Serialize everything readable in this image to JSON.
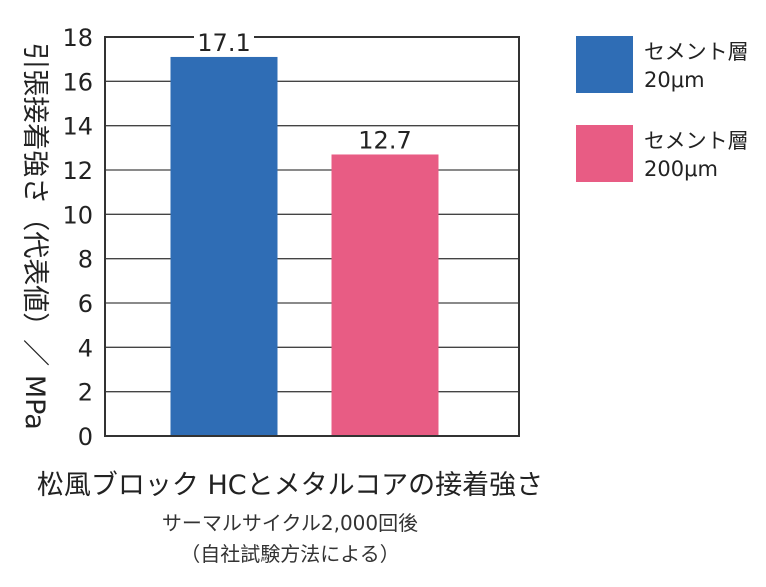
{
  "chart_data": {
    "type": "bar",
    "ylabel": "引張接着強さ（代表値）／ MPa",
    "ylim": [
      0,
      18
    ],
    "yticks": [
      "0",
      "2",
      "4",
      "6",
      "8",
      "10",
      "12",
      "14",
      "16",
      "18"
    ],
    "grid": true,
    "legend_position": "right",
    "series": [
      {
        "name": "セメント層 20μm",
        "values": [
          17.1
        ],
        "label": "17.1",
        "color": "#2f6db5"
      },
      {
        "name": "セメント層 200μm",
        "values": [
          12.7
        ],
        "label": "12.7",
        "color": "#e85c84"
      }
    ]
  },
  "legend": [
    {
      "line1": "セメント層",
      "line2": "20μm",
      "color": "#2f6db5"
    },
    {
      "line1": "セメント層",
      "line2": "200μm",
      "color": "#e85c84"
    }
  ],
  "caption": {
    "title": "松風ブロック HCとメタルコアの接着強さ",
    "sub1": "サーマルサイクル2,000回後",
    "sub2": "（自社試験方法による）"
  }
}
